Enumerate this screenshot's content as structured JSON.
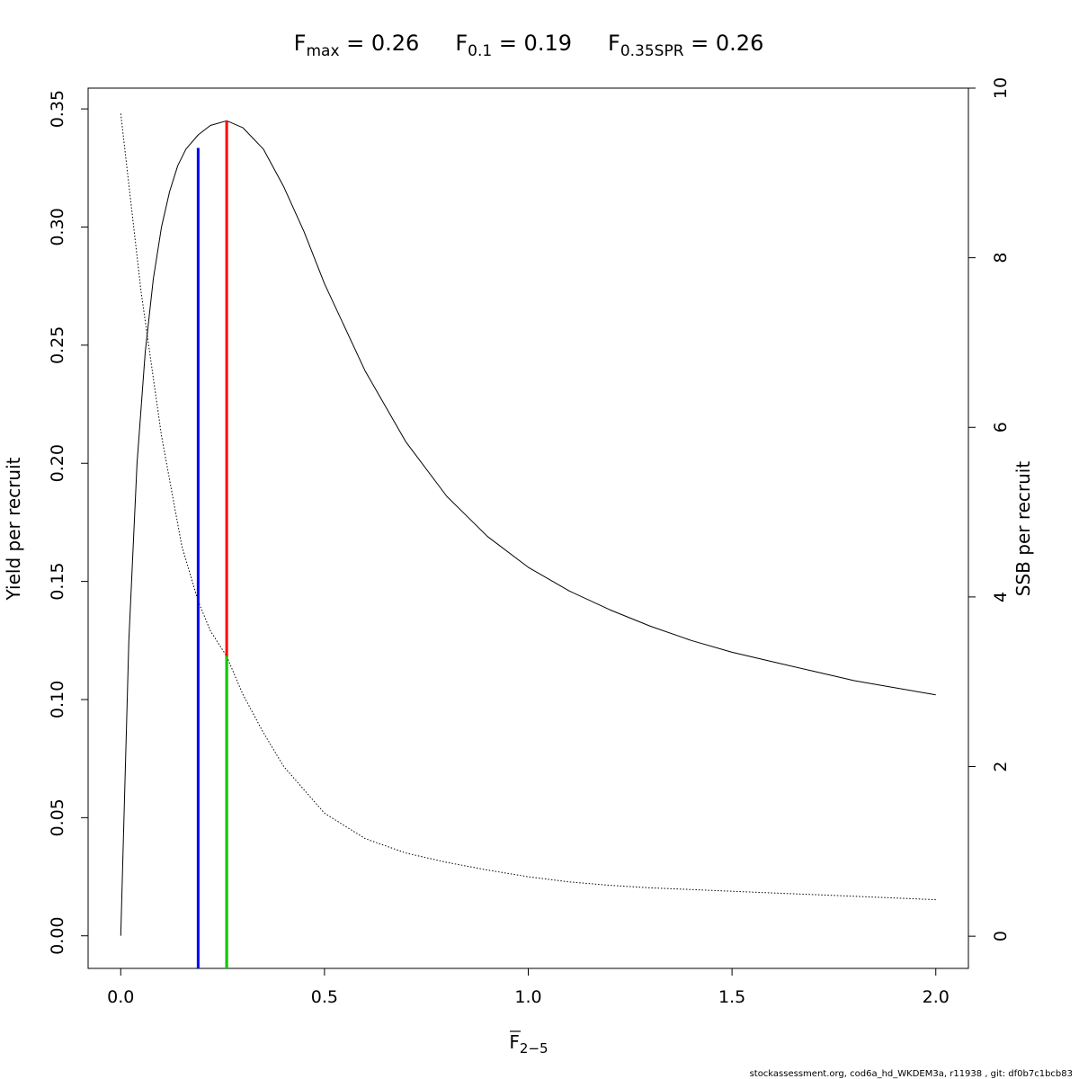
{
  "chart_data": {
    "type": "line",
    "title": {
      "fmax_main": "F",
      "fmax_sub": "max",
      "fmax_value": " = 0.26",
      "f01_main": "F",
      "f01_sub": "0.1",
      "f01_value": " = 0.19",
      "fspr_main": "F",
      "fspr_sub": "0.35SPR",
      "fspr_value": " = 0.26"
    },
    "xlabel_main": "F",
    "xlabel_sub": "2−5",
    "ylabel": "Yield per recruit",
    "y2label": "SSB per recruit",
    "xlim": [
      -0.08,
      2.08
    ],
    "ylim": [
      -0.0138,
      0.3588
    ],
    "y2lim": [
      -0.38,
      10.0
    ],
    "x_ticks": [
      "0.0",
      "0.5",
      "1.0",
      "1.5",
      "2.0"
    ],
    "y_ticks": [
      "0.00",
      "0.05",
      "0.10",
      "0.15",
      "0.20",
      "0.25",
      "0.30",
      "0.35"
    ],
    "y2_ticks": [
      "0",
      "2",
      "4",
      "6",
      "8",
      "10"
    ],
    "ypr_curve": {
      "x": [
        0,
        0.02,
        0.04,
        0.06,
        0.08,
        0.1,
        0.12,
        0.14,
        0.16,
        0.19,
        0.22,
        0.26,
        0.3,
        0.35,
        0.4,
        0.45,
        0.5,
        0.6,
        0.7,
        0.8,
        0.9,
        1.0,
        1.1,
        1.2,
        1.3,
        1.4,
        1.5,
        1.6,
        1.7,
        1.8,
        1.9,
        2.0
      ],
      "y": [
        0.0,
        0.125,
        0.2,
        0.247,
        0.278,
        0.3,
        0.315,
        0.326,
        0.333,
        0.339,
        0.343,
        0.345,
        0.342,
        0.333,
        0.317,
        0.298,
        0.276,
        0.239,
        0.209,
        0.186,
        0.169,
        0.156,
        0.146,
        0.138,
        0.131,
        0.125,
        0.12,
        0.116,
        0.112,
        0.108,
        0.105,
        0.102
      ]
    },
    "spr_curve": {
      "x": [
        0,
        0.05,
        0.1,
        0.15,
        0.19,
        0.22,
        0.26,
        0.3,
        0.35,
        0.4,
        0.5,
        0.6,
        0.7,
        0.8,
        0.9,
        1.0,
        1.1,
        1.2,
        1.3,
        1.4,
        1.5,
        1.6,
        1.7,
        1.8,
        1.9,
        2.0
      ],
      "y": [
        9.7,
        7.6,
        5.9,
        4.6,
        3.95,
        3.6,
        3.3,
        2.85,
        2.4,
        2.0,
        1.45,
        1.15,
        0.98,
        0.87,
        0.78,
        0.7,
        0.64,
        0.6,
        0.57,
        0.55,
        0.53,
        0.51,
        0.49,
        0.47,
        0.45,
        0.43
      ]
    },
    "reference_lines": [
      {
        "label": "F0.1",
        "color": "#0000ff",
        "x": 0.19,
        "y_top": 0.3335,
        "axis": "left"
      },
      {
        "label": "Fmax",
        "color": "#ff0000",
        "x": 0.26,
        "y_top": 0.345,
        "axis": "left"
      },
      {
        "label": "F0.35SPR",
        "color": "#00cc00",
        "x": 0.26,
        "y_top": 3.3,
        "axis": "right"
      }
    ],
    "grid": false,
    "legend": "none"
  },
  "footer": "stockassessment.org, cod6a_hd_WKDEM3a, r11938 , git: df0b7c1bcb83"
}
